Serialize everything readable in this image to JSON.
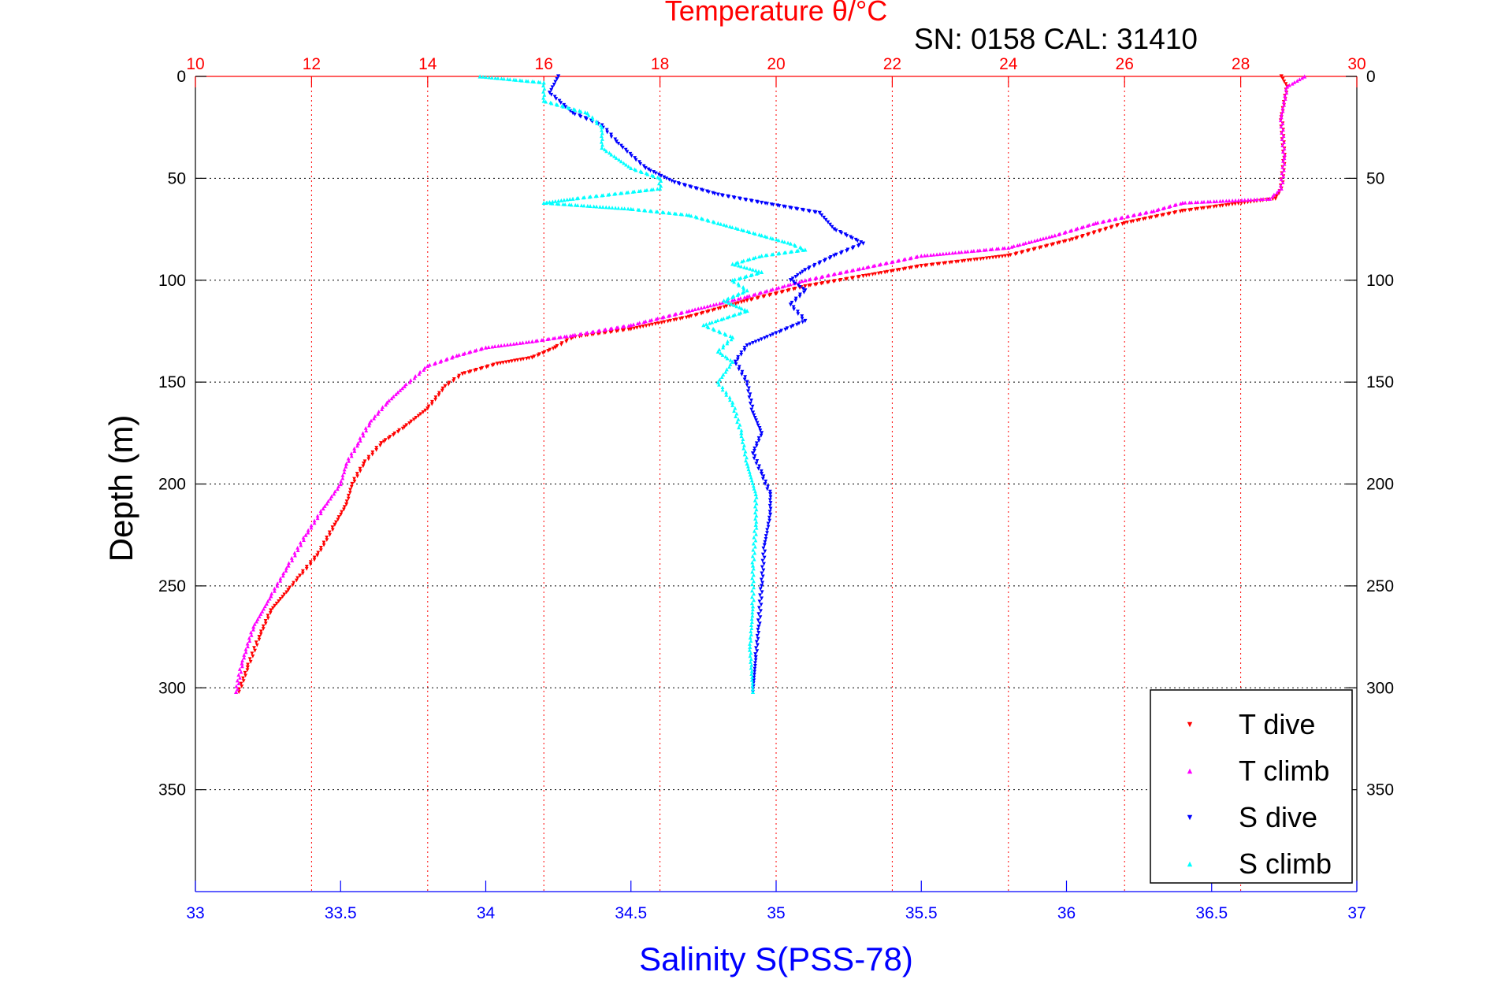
{
  "chart_data": {
    "type": "scatter",
    "title": "Temperature θ/°C",
    "annotation": "SN: 0158  CAL: 31410",
    "ylabel": "Depth (m)",
    "xlabel": "Salinity S(PSS-78)",
    "ylim": [
      0,
      400
    ],
    "y_reversed": true,
    "y_ticks": [
      0,
      50,
      100,
      150,
      200,
      250,
      300,
      350
    ],
    "temperature_axis": {
      "position": "top",
      "color": "#ff0000",
      "range": [
        10,
        30
      ],
      "ticks": [
        10,
        12,
        14,
        16,
        18,
        20,
        22,
        24,
        26,
        28,
        30
      ]
    },
    "salinity_axis": {
      "position": "bottom",
      "color": "#0000ff",
      "range": [
        33,
        37
      ],
      "ticks": [
        33,
        33.5,
        34,
        34.5,
        35,
        35.5,
        36,
        36.5,
        37
      ]
    },
    "grid": true,
    "legend_position": "bottom-right",
    "series": [
      {
        "name": "T dive",
        "axis": "temperature",
        "color": "#ff0000",
        "marker": "triangle-down",
        "points": [
          [
            28.7,
            0
          ],
          [
            28.8,
            5
          ],
          [
            28.7,
            20
          ],
          [
            28.75,
            40
          ],
          [
            28.7,
            55
          ],
          [
            28.6,
            60
          ],
          [
            27.0,
            66
          ],
          [
            26.0,
            72
          ],
          [
            25.1,
            80
          ],
          [
            24.0,
            88
          ],
          [
            22.5,
            93
          ],
          [
            21.5,
            98
          ],
          [
            20.5,
            103
          ],
          [
            19.5,
            110
          ],
          [
            18.5,
            118
          ],
          [
            17.5,
            124
          ],
          [
            16.5,
            128
          ],
          [
            16.2,
            133
          ],
          [
            15.8,
            138
          ],
          [
            15.2,
            141
          ],
          [
            14.6,
            146
          ],
          [
            14.3,
            152
          ],
          [
            14.0,
            163
          ],
          [
            13.6,
            172
          ],
          [
            13.2,
            180
          ],
          [
            12.9,
            190
          ],
          [
            12.7,
            200
          ],
          [
            12.6,
            210
          ],
          [
            12.4,
            220
          ],
          [
            12.1,
            235
          ],
          [
            11.8,
            245
          ],
          [
            11.6,
            252
          ],
          [
            11.3,
            262
          ],
          [
            11.1,
            275
          ],
          [
            10.9,
            290
          ],
          [
            10.75,
            302
          ]
        ]
      },
      {
        "name": "T climb",
        "axis": "temperature",
        "color": "#ff00ff",
        "marker": "triangle-up",
        "points": [
          [
            29.1,
            0
          ],
          [
            28.8,
            5
          ],
          [
            28.7,
            20
          ],
          [
            28.75,
            40
          ],
          [
            28.7,
            55
          ],
          [
            28.5,
            60
          ],
          [
            27.0,
            62
          ],
          [
            26.5,
            66
          ],
          [
            25.5,
            72
          ],
          [
            24.8,
            78
          ],
          [
            24.0,
            84
          ],
          [
            22.5,
            88
          ],
          [
            21.5,
            94
          ],
          [
            20.5,
            100
          ],
          [
            19.5,
            108
          ],
          [
            18.5,
            115
          ],
          [
            17.5,
            122
          ],
          [
            16.5,
            127
          ],
          [
            15.8,
            130
          ],
          [
            15.0,
            133
          ],
          [
            14.5,
            137
          ],
          [
            14.0,
            142
          ],
          [
            13.6,
            152
          ],
          [
            13.3,
            160
          ],
          [
            13.0,
            170
          ],
          [
            12.8,
            180
          ],
          [
            12.6,
            190
          ],
          [
            12.5,
            200
          ],
          [
            12.2,
            212
          ],
          [
            11.9,
            225
          ],
          [
            11.6,
            240
          ],
          [
            11.3,
            255
          ],
          [
            11.0,
            270
          ],
          [
            10.8,
            288
          ],
          [
            10.7,
            302
          ]
        ]
      },
      {
        "name": "S dive",
        "axis": "salinity",
        "color": "#0000ff",
        "marker": "triangle-down",
        "points": [
          [
            34.25,
            0
          ],
          [
            34.22,
            8
          ],
          [
            34.3,
            18
          ],
          [
            34.4,
            24
          ],
          [
            34.45,
            32
          ],
          [
            34.55,
            45
          ],
          [
            34.65,
            52
          ],
          [
            34.8,
            58
          ],
          [
            34.95,
            62
          ],
          [
            35.15,
            67
          ],
          [
            35.2,
            75
          ],
          [
            35.3,
            82
          ],
          [
            35.2,
            88
          ],
          [
            35.1,
            95
          ],
          [
            35.05,
            100
          ],
          [
            35.1,
            105
          ],
          [
            35.05,
            112
          ],
          [
            35.1,
            120
          ],
          [
            35.0,
            126
          ],
          [
            34.9,
            132
          ],
          [
            34.86,
            140
          ],
          [
            34.9,
            150
          ],
          [
            34.92,
            165
          ],
          [
            34.95,
            175
          ],
          [
            34.92,
            185
          ],
          [
            34.95,
            195
          ],
          [
            34.98,
            205
          ],
          [
            34.98,
            215
          ],
          [
            34.96,
            230
          ],
          [
            34.95,
            250
          ],
          [
            34.94,
            270
          ],
          [
            34.93,
            285
          ],
          [
            34.92,
            302
          ]
        ]
      },
      {
        "name": "S climb",
        "axis": "salinity",
        "color": "#00ffff",
        "marker": "triangle-up",
        "points": [
          [
            33.98,
            0
          ],
          [
            34.2,
            3
          ],
          [
            34.2,
            12
          ],
          [
            34.35,
            18
          ],
          [
            34.4,
            25
          ],
          [
            34.4,
            35
          ],
          [
            34.5,
            45
          ],
          [
            34.6,
            50
          ],
          [
            34.6,
            55
          ],
          [
            34.3,
            60
          ],
          [
            34.2,
            62
          ],
          [
            34.5,
            65
          ],
          [
            34.7,
            68
          ],
          [
            34.8,
            72
          ],
          [
            34.95,
            78
          ],
          [
            35.05,
            82
          ],
          [
            35.1,
            85
          ],
          [
            34.95,
            88
          ],
          [
            34.85,
            92
          ],
          [
            34.95,
            96
          ],
          [
            34.85,
            100
          ],
          [
            34.9,
            105
          ],
          [
            34.82,
            110
          ],
          [
            34.9,
            115
          ],
          [
            34.75,
            122
          ],
          [
            34.85,
            128
          ],
          [
            34.8,
            135
          ],
          [
            34.85,
            140
          ],
          [
            34.8,
            150
          ],
          [
            34.85,
            160
          ],
          [
            34.88,
            175
          ],
          [
            34.9,
            190
          ],
          [
            34.93,
            205
          ],
          [
            34.93,
            220
          ],
          [
            34.92,
            240
          ],
          [
            34.92,
            260
          ],
          [
            34.91,
            280
          ],
          [
            34.92,
            302
          ]
        ]
      }
    ]
  }
}
